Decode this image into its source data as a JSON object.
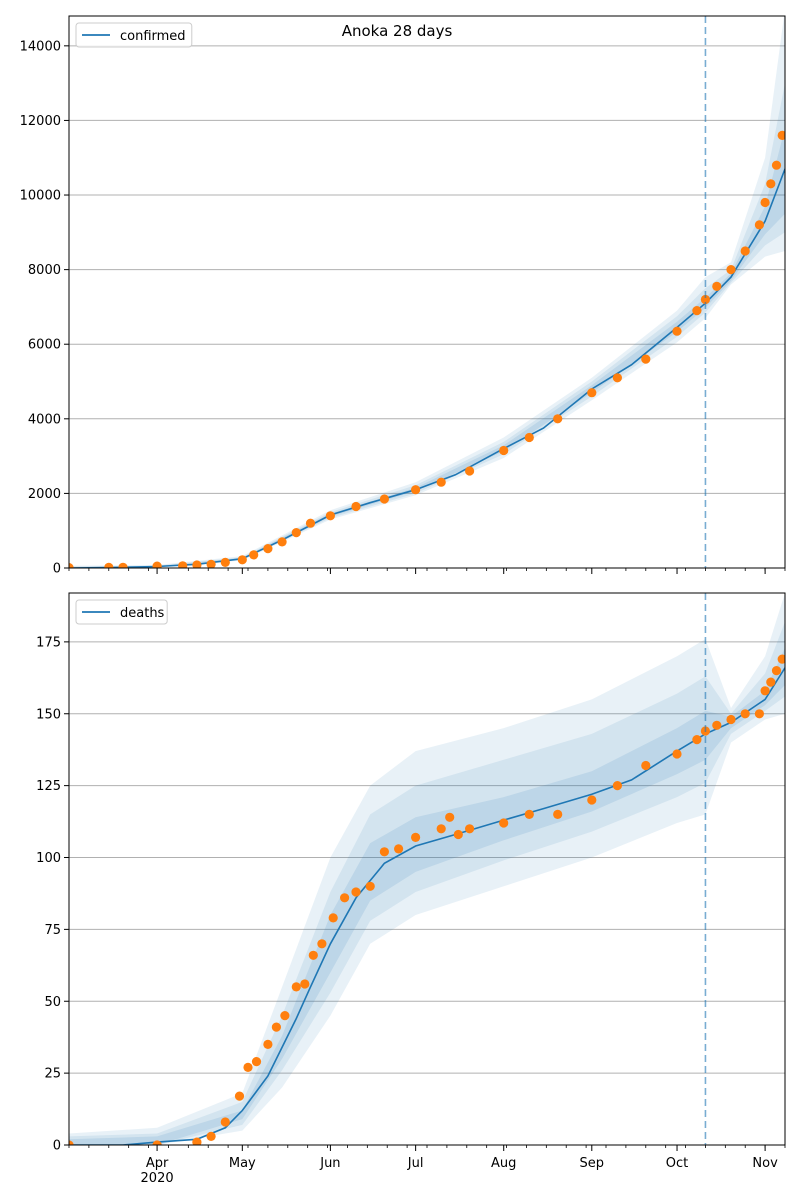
{
  "figure": {
    "title": "Anoka 28 days"
  },
  "colors": {
    "model_line": "#1f77b4",
    "observed_points": "#ff7f0e",
    "band": "#1f77b4",
    "grid": "#b0b0b0",
    "forecast_line": "#1f77b4"
  },
  "x_axis": {
    "month_ticks": [
      {
        "label": "Apr",
        "date": "2020-04-01"
      },
      {
        "label": "May",
        "date": "2020-05-01"
      },
      {
        "label": "Jun",
        "date": "2020-06-01"
      },
      {
        "label": "Jul",
        "date": "2020-07-01"
      },
      {
        "label": "Aug",
        "date": "2020-08-01"
      },
      {
        "label": "Sep",
        "date": "2020-09-01"
      },
      {
        "label": "Oct",
        "date": "2020-10-01"
      },
      {
        "label": "Nov",
        "date": "2020-11-01"
      }
    ],
    "year_label": "2020",
    "range": [
      "2020-03-01",
      "2020-11-08"
    ],
    "forecast_date": "2020-10-11"
  },
  "chart_data": [
    {
      "type": "line",
      "panel": "top",
      "title": "Anoka 28 days",
      "legend": {
        "label": "confirmed",
        "position": "top-left"
      },
      "grid": "y-only",
      "ylim": [
        0,
        14800
      ],
      "yticks": [
        0,
        2000,
        4000,
        6000,
        8000,
        10000,
        12000,
        14000
      ],
      "series": [
        {
          "name": "confirmed",
          "kind": "model_median",
          "x": [
            "2020-03-01",
            "2020-03-15",
            "2020-04-01",
            "2020-04-15",
            "2020-05-01",
            "2020-05-15",
            "2020-06-01",
            "2020-06-15",
            "2020-07-01",
            "2020-07-15",
            "2020-08-01",
            "2020-08-15",
            "2020-09-01",
            "2020-09-15",
            "2020-10-01",
            "2020-10-11",
            "2020-10-20",
            "2020-11-01",
            "2020-11-08"
          ],
          "y": [
            0,
            10,
            40,
            100,
            250,
            750,
            1420,
            1750,
            2100,
            2500,
            3200,
            3750,
            4800,
            5450,
            6450,
            7100,
            7800,
            9300,
            10700
          ]
        }
      ],
      "bands": [
        {
          "level": "outer",
          "x": [
            "2020-03-01",
            "2020-04-01",
            "2020-05-01",
            "2020-06-01",
            "2020-07-01",
            "2020-08-01",
            "2020-09-01",
            "2020-10-01",
            "2020-10-11",
            "2020-10-20",
            "2020-11-01",
            "2020-11-08"
          ],
          "lo": [
            0,
            30,
            200,
            1300,
            1950,
            2950,
            4500,
            6050,
            6700,
            7600,
            8350,
            8500
          ],
          "hi": [
            60,
            80,
            320,
            1550,
            2300,
            3500,
            5100,
            6900,
            7800,
            8200,
            11000,
            15000
          ]
        },
        {
          "level": "middle",
          "x": [
            "2020-03-01",
            "2020-04-01",
            "2020-05-01",
            "2020-06-01",
            "2020-07-01",
            "2020-08-01",
            "2020-09-01",
            "2020-10-01",
            "2020-10-11",
            "2020-10-20",
            "2020-11-01",
            "2020-11-08"
          ],
          "lo": [
            0,
            35,
            220,
            1340,
            2000,
            3050,
            4600,
            6200,
            6850,
            7650,
            8650,
            9000
          ],
          "hi": [
            40,
            60,
            290,
            1500,
            2220,
            3380,
            5000,
            6750,
            7500,
            8000,
            10300,
            13000
          ]
        },
        {
          "level": "inner",
          "x": [
            "2020-03-01",
            "2020-04-01",
            "2020-05-01",
            "2020-06-01",
            "2020-07-01",
            "2020-08-01",
            "2020-09-01",
            "2020-10-01",
            "2020-10-11",
            "2020-10-20",
            "2020-11-01",
            "2020-11-08"
          ],
          "lo": [
            0,
            38,
            235,
            1380,
            2060,
            3130,
            4700,
            6330,
            6980,
            7700,
            8950,
            9500
          ],
          "hi": [
            25,
            50,
            270,
            1460,
            2150,
            3290,
            4900,
            6600,
            7250,
            7900,
            9700,
            11800
          ]
        }
      ],
      "observed": {
        "x": [
          "2020-03-01",
          "2020-03-15",
          "2020-03-20",
          "2020-04-01",
          "2020-04-10",
          "2020-04-15",
          "2020-04-20",
          "2020-04-25",
          "2020-05-01",
          "2020-05-05",
          "2020-05-10",
          "2020-05-15",
          "2020-05-20",
          "2020-05-25",
          "2020-06-01",
          "2020-06-10",
          "2020-06-20",
          "2020-07-01",
          "2020-07-10",
          "2020-07-20",
          "2020-08-01",
          "2020-08-10",
          "2020-08-20",
          "2020-09-01",
          "2020-09-10",
          "2020-09-20",
          "2020-10-01",
          "2020-10-08",
          "2020-10-11",
          "2020-10-15",
          "2020-10-20",
          "2020-10-25",
          "2020-10-30",
          "2020-11-01",
          "2020-11-03",
          "2020-11-05",
          "2020-11-07"
        ],
        "y": [
          10,
          15,
          20,
          50,
          60,
          80,
          100,
          150,
          220,
          350,
          520,
          700,
          950,
          1200,
          1400,
          1650,
          1850,
          2100,
          2300,
          2600,
          3150,
          3500,
          4000,
          4700,
          5100,
          5600,
          6350,
          6900,
          7200,
          7550,
          8000,
          8500,
          9200,
          9800,
          10300,
          10800,
          11600
        ]
      }
    },
    {
      "type": "line",
      "panel": "bottom",
      "legend": {
        "label": "deaths",
        "position": "top-left"
      },
      "grid": "y-only",
      "ylim": [
        0,
        192
      ],
      "yticks": [
        0,
        25,
        50,
        75,
        100,
        125,
        150,
        175
      ],
      "series": [
        {
          "name": "deaths",
          "kind": "model_median",
          "x": [
            "2020-03-01",
            "2020-03-20",
            "2020-04-01",
            "2020-04-15",
            "2020-04-25",
            "2020-05-01",
            "2020-05-10",
            "2020-05-20",
            "2020-05-25",
            "2020-06-01",
            "2020-06-10",
            "2020-06-20",
            "2020-07-01",
            "2020-07-15",
            "2020-08-01",
            "2020-08-15",
            "2020-09-01",
            "2020-09-15",
            "2020-10-01",
            "2020-10-11",
            "2020-10-20",
            "2020-11-01",
            "2020-11-08"
          ],
          "y": [
            0,
            0,
            1,
            2,
            6,
            12,
            24,
            44,
            55,
            70,
            86,
            98,
            104,
            108,
            113,
            117,
            122,
            127,
            137,
            143,
            147,
            155,
            166
          ]
        }
      ],
      "bands": [
        {
          "level": "outer",
          "x": [
            "2020-03-01",
            "2020-04-01",
            "2020-05-01",
            "2020-05-15",
            "2020-06-01",
            "2020-06-15",
            "2020-07-01",
            "2020-08-01",
            "2020-09-01",
            "2020-10-01",
            "2020-10-11",
            "2020-10-20",
            "2020-11-01",
            "2020-11-08"
          ],
          "lo": [
            0,
            0,
            5,
            20,
            45,
            70,
            80,
            90,
            100,
            112,
            115,
            140,
            148,
            150
          ],
          "hi": [
            4,
            6,
            18,
            55,
            100,
            125,
            137,
            145,
            155,
            170,
            176,
            152,
            170,
            192
          ]
        },
        {
          "level": "middle",
          "x": [
            "2020-03-01",
            "2020-04-01",
            "2020-05-01",
            "2020-05-15",
            "2020-06-01",
            "2020-06-15",
            "2020-07-01",
            "2020-08-01",
            "2020-09-01",
            "2020-10-01",
            "2020-10-11",
            "2020-10-20",
            "2020-11-01",
            "2020-11-08"
          ],
          "lo": [
            0,
            0,
            7,
            26,
            53,
            78,
            88,
            99,
            109,
            121,
            126,
            143,
            151,
            156
          ],
          "hi": [
            3,
            4,
            15,
            45,
            88,
            115,
            125,
            134,
            143,
            157,
            163,
            150,
            164,
            182
          ]
        },
        {
          "level": "inner",
          "x": [
            "2020-03-01",
            "2020-04-01",
            "2020-05-01",
            "2020-05-15",
            "2020-06-01",
            "2020-06-15",
            "2020-07-01",
            "2020-08-01",
            "2020-09-01",
            "2020-10-01",
            "2020-10-11",
            "2020-10-20",
            "2020-11-01",
            "2020-11-08"
          ],
          "lo": [
            0,
            0,
            9,
            30,
            60,
            85,
            95,
            106,
            116,
            129,
            134,
            145,
            153,
            160
          ],
          "hi": [
            2,
            3,
            12,
            38,
            80,
            105,
            114,
            121,
            130,
            145,
            151,
            149,
            158,
            173
          ]
        }
      ],
      "observed": {
        "x": [
          "2020-03-01",
          "2020-04-01",
          "2020-04-15",
          "2020-04-20",
          "2020-04-25",
          "2020-04-30",
          "2020-05-03",
          "2020-05-06",
          "2020-05-10",
          "2020-05-13",
          "2020-05-16",
          "2020-05-20",
          "2020-05-23",
          "2020-05-26",
          "2020-05-29",
          "2020-06-02",
          "2020-06-06",
          "2020-06-10",
          "2020-06-15",
          "2020-06-20",
          "2020-06-25",
          "2020-07-01",
          "2020-07-10",
          "2020-07-13",
          "2020-07-16",
          "2020-07-20",
          "2020-08-01",
          "2020-08-10",
          "2020-08-20",
          "2020-09-01",
          "2020-09-10",
          "2020-09-20",
          "2020-10-01",
          "2020-10-08",
          "2020-10-11",
          "2020-10-15",
          "2020-10-20",
          "2020-10-25",
          "2020-10-30",
          "2020-11-01",
          "2020-11-03",
          "2020-11-05",
          "2020-11-07"
        ],
        "y": [
          0,
          0,
          1,
          3,
          8,
          17,
          27,
          29,
          35,
          41,
          45,
          55,
          56,
          66,
          70,
          79,
          86,
          88,
          90,
          102,
          103,
          107,
          110,
          114,
          108,
          110,
          112,
          115,
          115,
          120,
          125,
          132,
          136,
          141,
          144,
          146,
          148,
          150,
          150,
          158,
          161,
          165,
          169
        ]
      }
    }
  ]
}
